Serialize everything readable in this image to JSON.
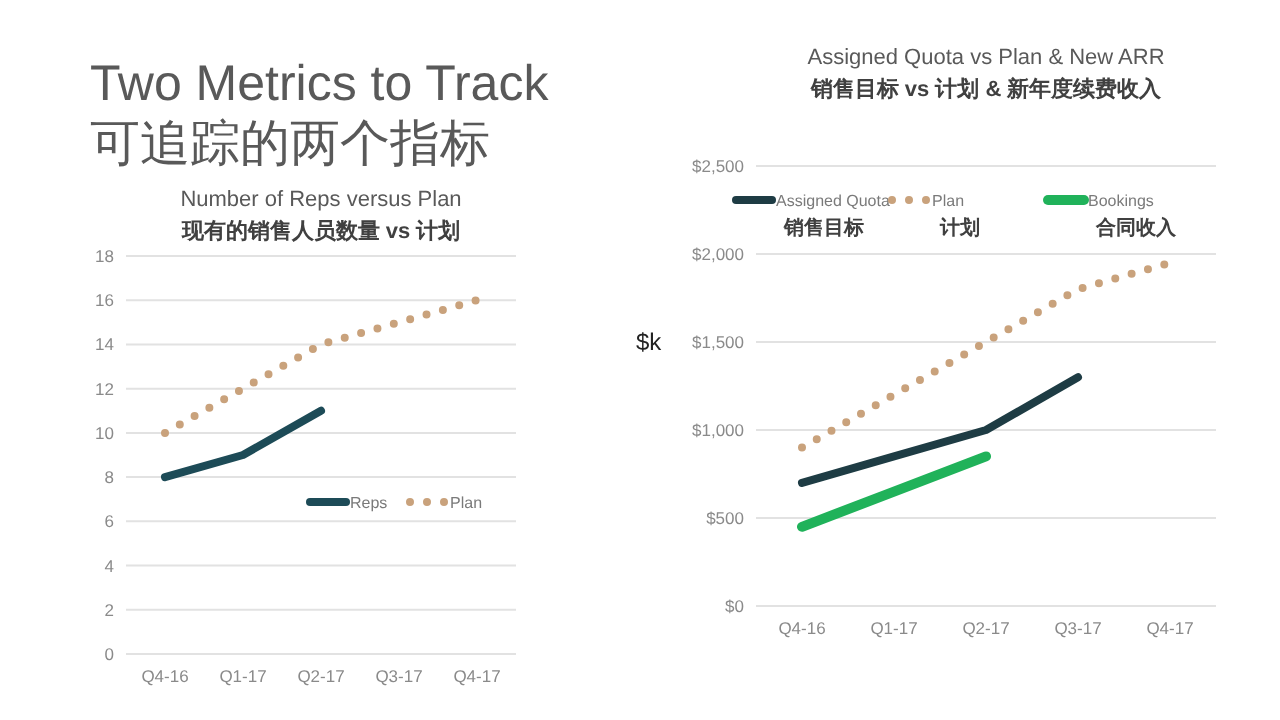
{
  "chart_data": [
    {
      "type": "other",
      "title": "Two Metrics to Track",
      "subtitle": "可追踪的两个指标"
    },
    {
      "type": "line",
      "title": "Number  of Reps versus Plan",
      "subtitle": "现有的销售人员数量 vs 计划",
      "categories": [
        "Q4-16",
        "Q1-17",
        "Q2-17",
        "Q3-17",
        "Q4-17"
      ],
      "series": [
        {
          "name": "Reps",
          "color": "#1d4b57",
          "values": [
            8,
            9,
            11,
            null,
            null
          ],
          "line_style": "solid"
        },
        {
          "name": "Plan",
          "color": "#c9a27c",
          "values": [
            10,
            12,
            14,
            15,
            16
          ],
          "line_style": "dotted"
        }
      ],
      "ylim": [
        0,
        18
      ],
      "yticks": [
        0,
        2,
        4,
        6,
        8,
        10,
        12,
        14,
        16,
        18
      ],
      "grid": "y",
      "legend": "right"
    },
    {
      "type": "line",
      "title": "Assigned  Quota vs Plan & New ARR",
      "subtitle": "销售目标 vs 计划 & 新年度续费收入",
      "ylabel": "$k",
      "categories": [
        "Q4-16",
        "Q1-17",
        "Q2-17",
        "Q3-17",
        "Q4-17"
      ],
      "series": [
        {
          "name": "Assigned Quota\n销售目标",
          "color": "#1e3c44",
          "values": [
            700,
            850,
            1000,
            1300,
            null
          ],
          "line_style": "solid"
        },
        {
          "name": "Plan\n计划",
          "color": "#c9a27c",
          "values": [
            900,
            1200,
            1500,
            1800,
            1950
          ],
          "line_style": "dotted"
        },
        {
          "name": "Bookings\n合同收入",
          "color": "#20b25a",
          "values": [
            450,
            650,
            850,
            null,
            null
          ],
          "line_style": "solid"
        }
      ],
      "ylim": [
        0,
        2500
      ],
      "yticks": [
        {
          "value": 0,
          "label": "$0"
        },
        {
          "value": 500,
          "label": "$500"
        },
        {
          "value": 1000,
          "label": "$1,000"
        },
        {
          "value": 1500,
          "label": "$1,500"
        },
        {
          "value": 2000,
          "label": "$2,000"
        },
        {
          "value": 2500,
          "label": "$2,500"
        }
      ],
      "grid": "y",
      "legend": "top"
    }
  ]
}
